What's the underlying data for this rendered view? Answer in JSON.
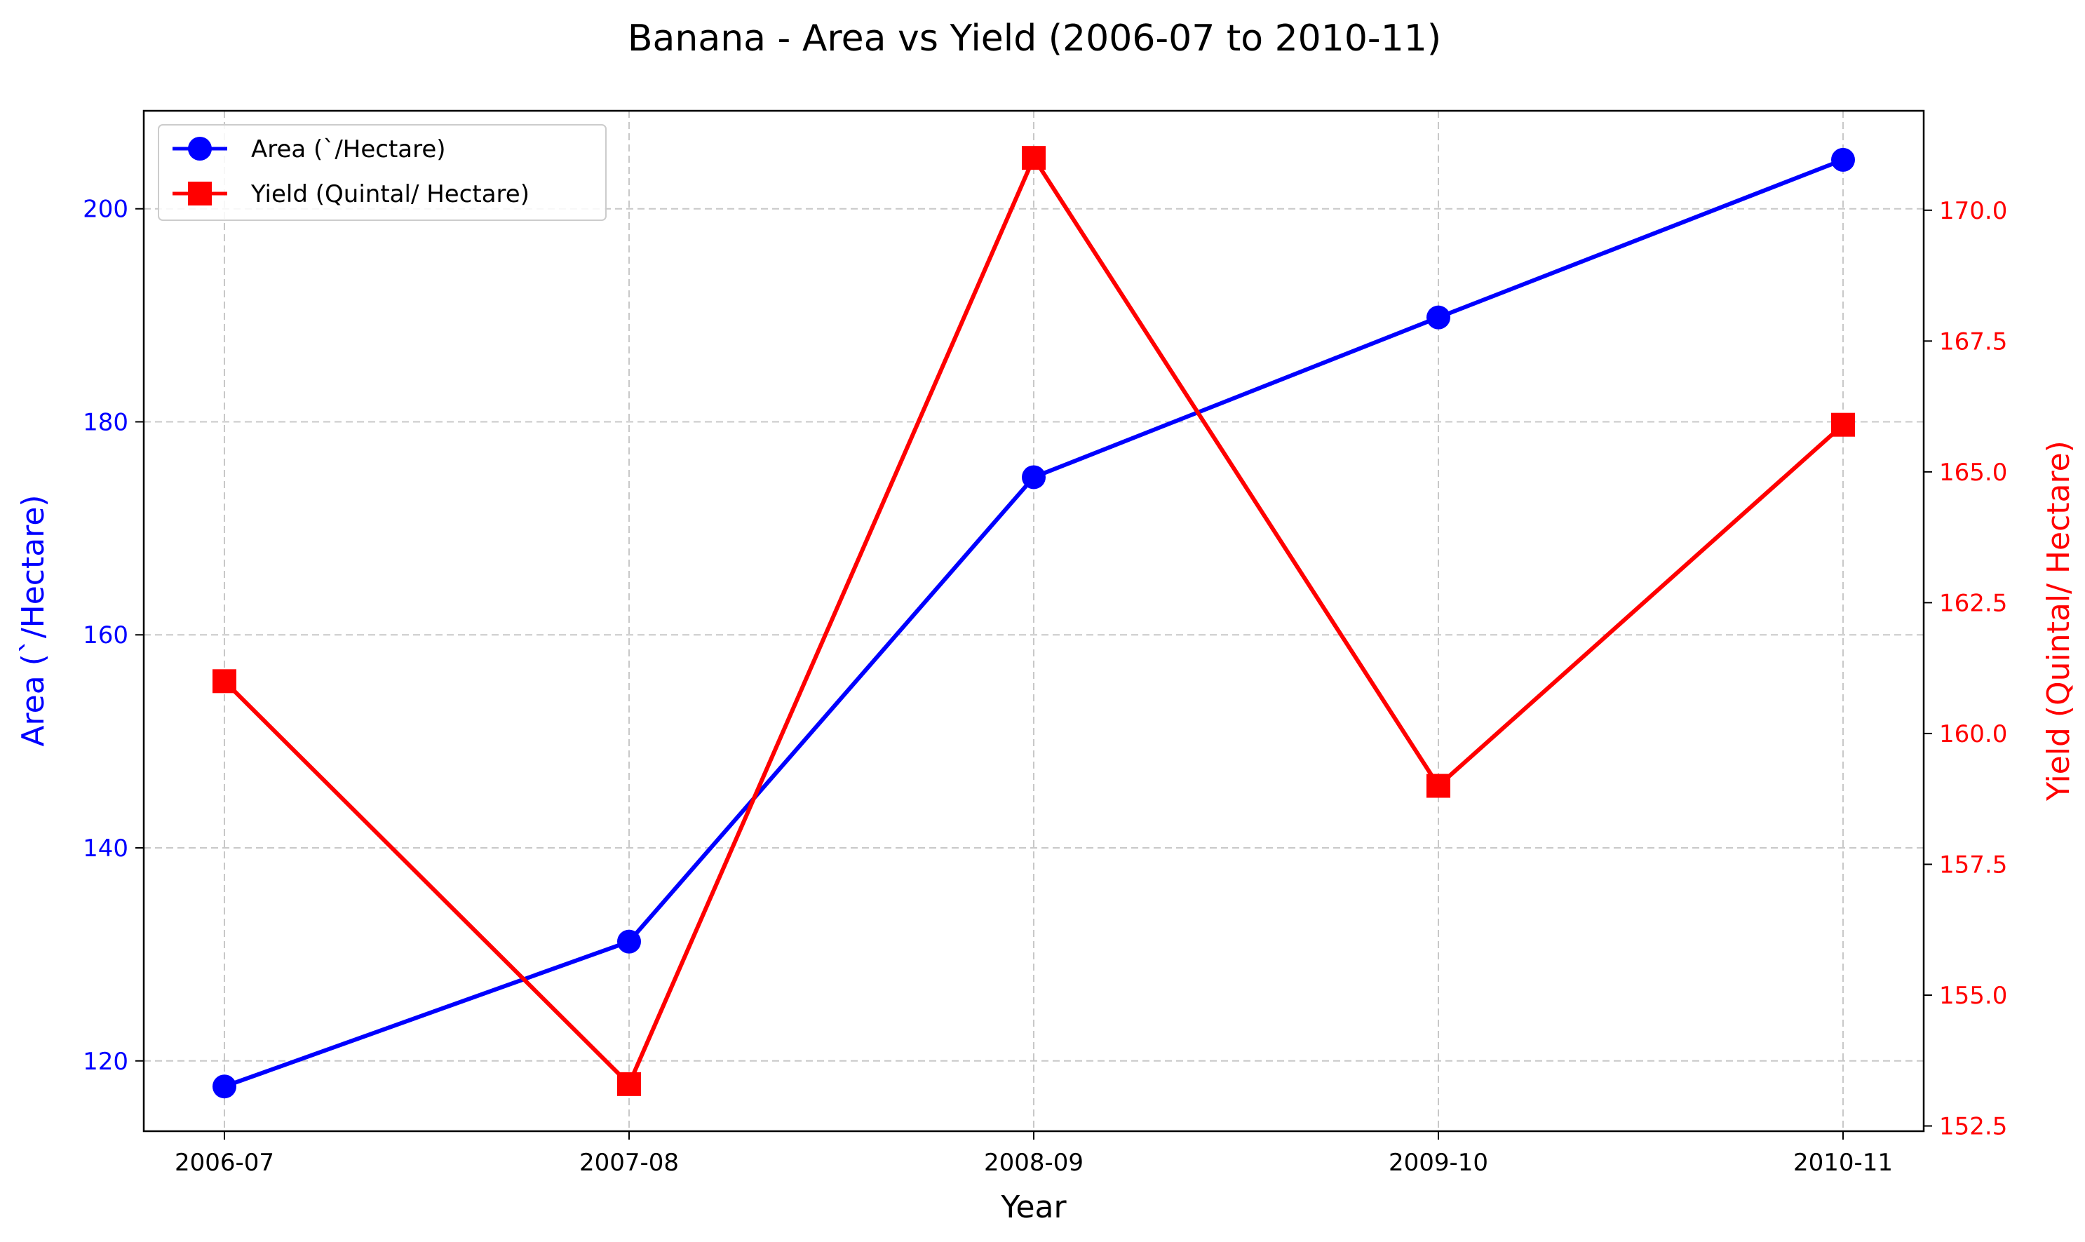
{
  "chart_data": {
    "type": "line",
    "title": "Banana   - Area vs Yield (2006-07 to 2010-11)",
    "xlabel": "Year",
    "categories": [
      "2006-07",
      "2007-08",
      "2008-09",
      "2009-10",
      "2010-11"
    ],
    "y_left": {
      "label": "Area (`/Hectare)",
      "ylim": [
        113.4,
        209.2
      ],
      "ticks": [
        120,
        140,
        160,
        180,
        200
      ],
      "color": "#0000ff"
    },
    "y_right": {
      "label": "Yield (Quintal/ Hectare)",
      "ylim": [
        152.4,
        171.9
      ],
      "ticks": [
        "152.5",
        "155.0",
        "157.5",
        "160.0",
        "162.5",
        "165.0",
        "167.5",
        "170.0"
      ],
      "color": "#ff0000"
    },
    "series": [
      {
        "name": "Area (`/Hectare)",
        "axis": "left",
        "color": "#0000ff",
        "marker": "circle",
        "values": [
          117.6,
          131.2,
          174.8,
          189.8,
          204.6
        ]
      },
      {
        "name": "Yield (Quintal/ Hectare)",
        "axis": "right",
        "color": "#ff0000",
        "marker": "square",
        "values": [
          161.0,
          153.3,
          171.0,
          159.0,
          165.9
        ]
      }
    ],
    "grid": true,
    "legend_position": "top-left"
  }
}
